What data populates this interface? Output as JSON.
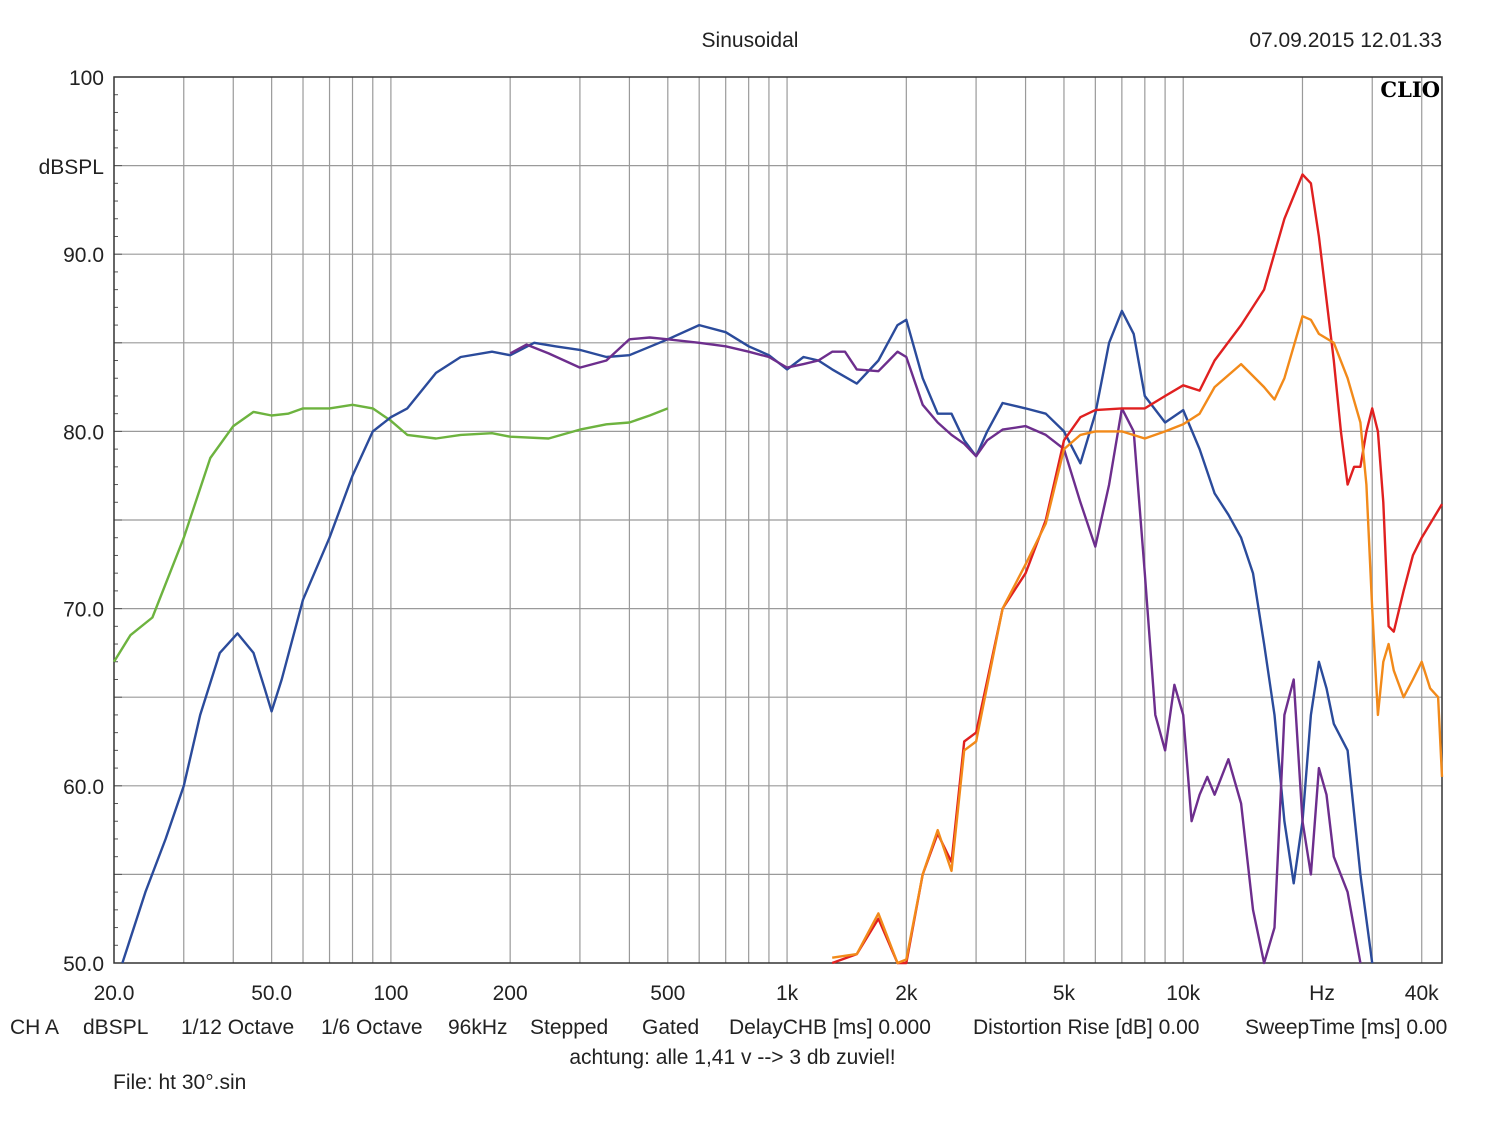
{
  "chart_data": {
    "type": "line",
    "title": "Sinusoidal",
    "timestamp": "07.09.2015 12.01.33",
    "brand": "CLIO",
    "ylabel": "dBSPL",
    "xlabel": "Hz",
    "x_scale": "log",
    "xlim": [
      20,
      45000
    ],
    "ylim": [
      50,
      100
    ],
    "grid": true,
    "x_ticks": [
      {
        "value": 20,
        "label": "20.0"
      },
      {
        "value": 50,
        "label": "50.0"
      },
      {
        "value": 100,
        "label": "100"
      },
      {
        "value": 200,
        "label": "200"
      },
      {
        "value": 500,
        "label": "500"
      },
      {
        "value": 1000,
        "label": "1k"
      },
      {
        "value": 2000,
        "label": "2k"
      },
      {
        "value": 5000,
        "label": "5k"
      },
      {
        "value": 10000,
        "label": "10k"
      },
      {
        "value": 40000,
        "label": "40k"
      }
    ],
    "y_ticks": [
      {
        "value": 100,
        "label": "100"
      },
      {
        "value": 90,
        "label": "90.0"
      },
      {
        "value": 80,
        "label": "80.0"
      },
      {
        "value": 70,
        "label": "70.0"
      },
      {
        "value": 60,
        "label": "60.0"
      },
      {
        "value": 50,
        "label": "50.0"
      }
    ],
    "series": [
      {
        "color": "#6db33f",
        "points": [
          [
            20,
            67
          ],
          [
            22,
            68.5
          ],
          [
            25,
            69.5
          ],
          [
            30,
            74
          ],
          [
            35,
            78.5
          ],
          [
            40,
            80.3
          ],
          [
            45,
            81.1
          ],
          [
            50,
            80.9
          ],
          [
            55,
            81
          ],
          [
            60,
            81.3
          ],
          [
            70,
            81.3
          ],
          [
            80,
            81.5
          ],
          [
            90,
            81.3
          ],
          [
            100,
            80.6
          ],
          [
            110,
            79.8
          ],
          [
            130,
            79.6
          ],
          [
            150,
            79.8
          ],
          [
            180,
            79.9
          ],
          [
            200,
            79.7
          ],
          [
            250,
            79.6
          ],
          [
            300,
            80.1
          ],
          [
            350,
            80.4
          ],
          [
            400,
            80.5
          ],
          [
            450,
            80.9
          ],
          [
            500,
            81.3
          ]
        ]
      },
      {
        "color": "#2b4b9b",
        "points": [
          [
            21,
            50
          ],
          [
            24,
            54
          ],
          [
            27,
            57
          ],
          [
            30,
            60
          ],
          [
            33,
            64
          ],
          [
            37,
            67.5
          ],
          [
            41,
            68.6
          ],
          [
            45,
            67.5
          ],
          [
            48,
            65.5
          ],
          [
            50,
            64.2
          ],
          [
            53,
            66
          ],
          [
            60,
            70.5
          ],
          [
            70,
            74
          ],
          [
            80,
            77.5
          ],
          [
            90,
            80
          ],
          [
            100,
            80.8
          ],
          [
            110,
            81.3
          ],
          [
            130,
            83.3
          ],
          [
            150,
            84.2
          ],
          [
            180,
            84.5
          ],
          [
            200,
            84.3
          ],
          [
            230,
            85
          ],
          [
            260,
            84.8
          ],
          [
            300,
            84.6
          ],
          [
            350,
            84.2
          ],
          [
            400,
            84.3
          ],
          [
            500,
            85.2
          ],
          [
            600,
            86
          ],
          [
            700,
            85.6
          ],
          [
            800,
            84.8
          ],
          [
            900,
            84.3
          ],
          [
            1000,
            83.5
          ],
          [
            1100,
            84.2
          ],
          [
            1200,
            84
          ],
          [
            1300,
            83.5
          ],
          [
            1500,
            82.7
          ],
          [
            1700,
            84
          ],
          [
            1900,
            86
          ],
          [
            2000,
            86.3
          ],
          [
            2200,
            83
          ],
          [
            2400,
            81
          ],
          [
            2600,
            81
          ],
          [
            2800,
            79.5
          ],
          [
            3000,
            78.6
          ],
          [
            3200,
            80
          ],
          [
            3500,
            81.6
          ],
          [
            4000,
            81.3
          ],
          [
            4500,
            81
          ],
          [
            5000,
            80
          ],
          [
            5500,
            78.2
          ],
          [
            6000,
            81
          ],
          [
            6500,
            85
          ],
          [
            7000,
            86.8
          ],
          [
            7500,
            85.5
          ],
          [
            8000,
            82
          ],
          [
            9000,
            80.5
          ],
          [
            10000,
            81.2
          ],
          [
            11000,
            79
          ],
          [
            12000,
            76.5
          ],
          [
            13000,
            75.3
          ],
          [
            14000,
            74
          ],
          [
            15000,
            72
          ],
          [
            16000,
            68
          ],
          [
            17000,
            64
          ],
          [
            18000,
            58
          ],
          [
            19000,
            54.5
          ],
          [
            20000,
            58
          ],
          [
            21000,
            64
          ],
          [
            22000,
            67
          ],
          [
            23000,
            65.5
          ],
          [
            24000,
            63.5
          ],
          [
            26000,
            62
          ],
          [
            28000,
            55
          ],
          [
            30000,
            50
          ]
        ]
      },
      {
        "color": "#6d2e8d",
        "points": [
          [
            200,
            84.4
          ],
          [
            220,
            84.9
          ],
          [
            250,
            84.4
          ],
          [
            300,
            83.6
          ],
          [
            350,
            84
          ],
          [
            400,
            85.2
          ],
          [
            450,
            85.3
          ],
          [
            500,
            85.2
          ],
          [
            600,
            85
          ],
          [
            700,
            84.8
          ],
          [
            800,
            84.5
          ],
          [
            900,
            84.2
          ],
          [
            1000,
            83.6
          ],
          [
            1100,
            83.8
          ],
          [
            1200,
            84
          ],
          [
            1300,
            84.5
          ],
          [
            1400,
            84.5
          ],
          [
            1500,
            83.5
          ],
          [
            1700,
            83.4
          ],
          [
            1900,
            84.5
          ],
          [
            2000,
            84.2
          ],
          [
            2200,
            81.5
          ],
          [
            2400,
            80.5
          ],
          [
            2600,
            79.8
          ],
          [
            2800,
            79.3
          ],
          [
            3000,
            78.6
          ],
          [
            3200,
            79.5
          ],
          [
            3500,
            80.1
          ],
          [
            4000,
            80.3
          ],
          [
            4500,
            79.8
          ],
          [
            5000,
            79
          ],
          [
            5500,
            76
          ],
          [
            6000,
            73.5
          ],
          [
            6500,
            77
          ],
          [
            7000,
            81.3
          ],
          [
            7500,
            80
          ],
          [
            8000,
            72
          ],
          [
            8500,
            64
          ],
          [
            9000,
            62
          ],
          [
            9500,
            65.7
          ],
          [
            10000,
            64
          ],
          [
            10500,
            58
          ],
          [
            11000,
            59.5
          ],
          [
            11500,
            60.5
          ],
          [
            12000,
            59.5
          ],
          [
            13000,
            61.5
          ],
          [
            14000,
            59
          ],
          [
            15000,
            53
          ],
          [
            16000,
            49.5
          ],
          [
            17000,
            52
          ],
          [
            18000,
            64
          ],
          [
            19000,
            66
          ],
          [
            20000,
            58
          ],
          [
            21000,
            55
          ],
          [
            22000,
            61
          ],
          [
            23000,
            59.5
          ],
          [
            24000,
            56
          ],
          [
            26000,
            54
          ],
          [
            28000,
            50
          ]
        ]
      },
      {
        "color": "#e02020",
        "points": [
          [
            1300,
            50
          ],
          [
            1500,
            50.5
          ],
          [
            1700,
            52.5
          ],
          [
            1900,
            50
          ],
          [
            2000,
            49.8
          ],
          [
            2200,
            55
          ],
          [
            2400,
            57.3
          ],
          [
            2600,
            55.7
          ],
          [
            2800,
            62.5
          ],
          [
            3000,
            63
          ],
          [
            3500,
            70
          ],
          [
            4000,
            72
          ],
          [
            4500,
            75
          ],
          [
            5000,
            79.5
          ],
          [
            5500,
            80.8
          ],
          [
            6000,
            81.2
          ],
          [
            7000,
            81.3
          ],
          [
            8000,
            81.3
          ],
          [
            9000,
            82
          ],
          [
            10000,
            82.6
          ],
          [
            11000,
            82.3
          ],
          [
            12000,
            84
          ],
          [
            14000,
            86
          ],
          [
            16000,
            88
          ],
          [
            18000,
            92
          ],
          [
            20000,
            94.5
          ],
          [
            21000,
            94
          ],
          [
            22000,
            91
          ],
          [
            24000,
            84
          ],
          [
            25000,
            80
          ],
          [
            26000,
            77
          ],
          [
            27000,
            78
          ],
          [
            28000,
            78
          ],
          [
            29000,
            80
          ],
          [
            30000,
            81.3
          ],
          [
            31000,
            80
          ],
          [
            32000,
            76
          ],
          [
            33000,
            69
          ],
          [
            34000,
            68.7
          ],
          [
            36000,
            71
          ],
          [
            38000,
            73
          ],
          [
            40000,
            74
          ],
          [
            45000,
            75.9
          ]
        ]
      },
      {
        "color": "#f28a1a",
        "points": [
          [
            1300,
            50.3
          ],
          [
            1500,
            50.5
          ],
          [
            1700,
            52.8
          ],
          [
            1900,
            50
          ],
          [
            2000,
            50.2
          ],
          [
            2200,
            55
          ],
          [
            2400,
            57.5
          ],
          [
            2600,
            55.2
          ],
          [
            2800,
            62
          ],
          [
            3000,
            62.5
          ],
          [
            3500,
            70
          ],
          [
            4000,
            72.5
          ],
          [
            4500,
            74.8
          ],
          [
            5000,
            79
          ],
          [
            5500,
            79.8
          ],
          [
            6000,
            80
          ],
          [
            7000,
            80
          ],
          [
            8000,
            79.6
          ],
          [
            9000,
            80
          ],
          [
            10000,
            80.4
          ],
          [
            11000,
            81
          ],
          [
            12000,
            82.5
          ],
          [
            14000,
            83.8
          ],
          [
            16000,
            82.5
          ],
          [
            17000,
            81.8
          ],
          [
            18000,
            83
          ],
          [
            20000,
            86.5
          ],
          [
            21000,
            86.3
          ],
          [
            22000,
            85.5
          ],
          [
            24000,
            85
          ],
          [
            26000,
            83
          ],
          [
            28000,
            80.5
          ],
          [
            29000,
            77
          ],
          [
            30000,
            70
          ],
          [
            31000,
            64
          ],
          [
            32000,
            67
          ],
          [
            33000,
            68
          ],
          [
            34000,
            66.5
          ],
          [
            36000,
            65
          ],
          [
            38000,
            66
          ],
          [
            40000,
            67
          ],
          [
            42000,
            65.5
          ],
          [
            44000,
            65
          ],
          [
            45000,
            60.5
          ]
        ]
      }
    ],
    "footer": [
      "CH A",
      "dBSPL",
      "1/12 Octave",
      "1/6 Octave",
      "96kHz",
      "Stepped",
      "Gated",
      "DelayCHB [ms] 0.000",
      "Distortion Rise [dB] 0.00",
      "SweepTime [ms] 0.00"
    ],
    "note": "achtung: alle 1,41 v --> 3 db zuviel!",
    "file": "File: ht 30°.sin"
  }
}
